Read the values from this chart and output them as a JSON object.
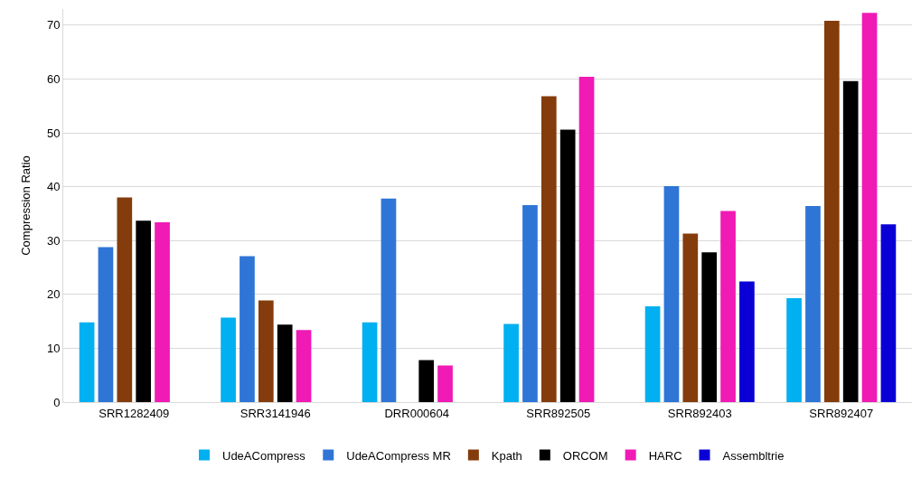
{
  "chart_data": {
    "type": "bar",
    "ylabel": "Compression Ratio",
    "categories": [
      "SRR1282409",
      "SRR3141946",
      "DRR000604",
      "SRR892505",
      "SRR892403",
      "SRR892407"
    ],
    "series": [
      {
        "name": "UdeACompress",
        "color": "#00b0f0",
        "values": [
          14.8,
          15.7,
          14.8,
          14.5,
          17.8,
          19.3
        ]
      },
      {
        "name": "UdeACompress MR",
        "color": "#2e75d6",
        "values": [
          28.8,
          27.1,
          37.8,
          36.6,
          40.1,
          36.4
        ]
      },
      {
        "name": "Kpath",
        "color": "#843c0c",
        "values": [
          38.0,
          18.9,
          null,
          56.8,
          31.3,
          70.8
        ]
      },
      {
        "name": "ORCOM",
        "color": "#000000",
        "values": [
          33.7,
          14.4,
          7.8,
          50.6,
          27.8,
          59.6
        ]
      },
      {
        "name": "HARC",
        "color": "#f01ab4",
        "values": [
          33.4,
          13.4,
          6.8,
          60.4,
          35.5,
          72.3
        ]
      },
      {
        "name": "Assembltrie",
        "color": "#0a00d6",
        "values": [
          null,
          null,
          null,
          null,
          22.4,
          33.0
        ]
      }
    ],
    "ylim": [
      0,
      73
    ],
    "yticks": [
      0,
      10,
      20,
      30,
      40,
      50,
      60,
      70
    ],
    "grid": "y",
    "legend": "bottom"
  }
}
